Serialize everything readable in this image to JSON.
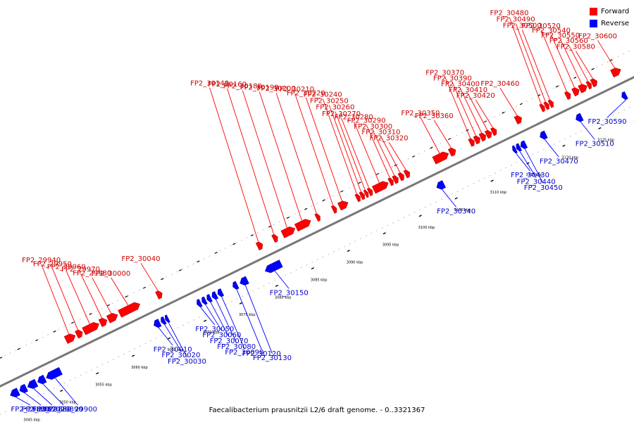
{
  "legend": {
    "forward_label": "Forward",
    "reverse_label": "Reverse",
    "forward_color": "#ff0000",
    "reverse_color": "#0000ff"
  },
  "caption": "Faecalibacterium prausnitzii L2/6 draft genome. - 0..3321367",
  "kbp_start": 3045,
  "kbp_end": 3130,
  "kbp_step": 5,
  "kbp_unit": "kbp",
  "genes": [
    {
      "name": "FP2_29860",
      "strand": "reverse",
      "start": 3044.0,
      "end": 3045.1
    },
    {
      "name": "FP2_29870",
      "strand": "reverse",
      "start": 3045.3,
      "end": 3046.2
    },
    {
      "name": "FP2_29880",
      "strand": "reverse",
      "start": 3046.4,
      "end": 3047.6
    },
    {
      "name": "FP2_29890",
      "strand": "reverse",
      "start": 3047.8,
      "end": 3048.8
    },
    {
      "name": "FP2_29900",
      "strand": "reverse",
      "start": 3049.0,
      "end": 3051.0
    },
    {
      "name": "FP2_29940",
      "strand": "forward",
      "start": 3053.3,
      "end": 3054.6
    },
    {
      "name": "FP2_29950",
      "strand": "forward",
      "start": 3054.8,
      "end": 3055.6
    },
    {
      "name": "FP2_29960",
      "strand": "forward",
      "start": 3055.8,
      "end": 3057.9
    },
    {
      "name": "FP2_29970",
      "strand": "forward",
      "start": 3058.1,
      "end": 3059.0
    },
    {
      "name": "FP2_29980",
      "strand": "forward",
      "start": 3059.2,
      "end": 3060.5
    },
    {
      "name": "FP2_30000",
      "strand": "forward",
      "start": 3060.8,
      "end": 3063.6
    },
    {
      "name": "FP2_30010",
      "strand": "reverse",
      "start": 3064.0,
      "end": 3064.8
    },
    {
      "name": "FP2_30020",
      "strand": "reverse",
      "start": 3065.0,
      "end": 3065.5
    },
    {
      "name": "FP2_30030",
      "strand": "reverse",
      "start": 3065.6,
      "end": 3066.0
    },
    {
      "name": "FP2_30040",
      "strand": "forward",
      "start": 3066.0,
      "end": 3066.7
    },
    {
      "name": "FP2_30050",
      "strand": "reverse",
      "start": 3070.0,
      "end": 3070.5
    },
    {
      "name": "FP2_30060",
      "strand": "reverse",
      "start": 3070.7,
      "end": 3071.2
    },
    {
      "name": "FP2_30070",
      "strand": "reverse",
      "start": 3071.4,
      "end": 3071.9
    },
    {
      "name": "FP2_30080",
      "strand": "reverse",
      "start": 3072.1,
      "end": 3072.7
    },
    {
      "name": "FP2_30090",
      "strand": "reverse",
      "start": 3072.9,
      "end": 3073.5
    },
    {
      "name": "FP2_30120",
      "strand": "reverse",
      "start": 3075.0,
      "end": 3075.6
    },
    {
      "name": "FP2_30130",
      "strand": "reverse",
      "start": 3076.0,
      "end": 3077.0
    },
    {
      "name": "FP2_30150",
      "strand": "reverse",
      "start": 3079.5,
      "end": 3081.7
    },
    {
      "name": "FP2_30140",
      "strand": "forward",
      "start": 3080.0,
      "end": 3080.7
    },
    {
      "name": "FP2_30160",
      "strand": "forward",
      "start": 3082.2,
      "end": 3082.8
    },
    {
      "name": "FP2_30180",
      "strand": "forward",
      "start": 3083.5,
      "end": 3085.2
    },
    {
      "name": "FP2_30190",
      "strand": "forward",
      "start": 3085.4,
      "end": 3087.4
    },
    {
      "name": "FP2_30200",
      "strand": "forward",
      "start": 3088.2,
      "end": 3088.7
    },
    {
      "name": "FP2_30210",
      "strand": "forward",
      "start": 3090.5,
      "end": 3091.0
    },
    {
      "name": "FP2_30220",
      "strand": "forward",
      "start": 3091.4,
      "end": 3092.6
    },
    {
      "name": "FP2_30240",
      "strand": "forward",
      "start": 3093.8,
      "end": 3094.3
    },
    {
      "name": "FP2_30250",
      "strand": "forward",
      "start": 3094.4,
      "end": 3094.9
    },
    {
      "name": "FP2_30260",
      "strand": "forward",
      "start": 3095.0,
      "end": 3095.4
    },
    {
      "name": "FP2_30270",
      "strand": "forward",
      "start": 3095.5,
      "end": 3096.0
    },
    {
      "name": "FP2_30280",
      "strand": "forward",
      "start": 3096.2,
      "end": 3098.2
    },
    {
      "name": "FP2_30290",
      "strand": "forward",
      "start": 3098.4,
      "end": 3098.9
    },
    {
      "name": "FP2_30300",
      "strand": "forward",
      "start": 3099.0,
      "end": 3099.6
    },
    {
      "name": "FP2_30310",
      "strand": "forward",
      "start": 3099.8,
      "end": 3100.4
    },
    {
      "name": "FP2_30320",
      "strand": "forward",
      "start": 3100.6,
      "end": 3101.2
    },
    {
      "name": "FP2_30340",
      "strand": "reverse",
      "start": 3103.4,
      "end": 3104.4
    },
    {
      "name": "FP2_30350",
      "strand": "forward",
      "start": 3104.6,
      "end": 3106.6
    },
    {
      "name": "FP2_30360",
      "strand": "forward",
      "start": 3106.8,
      "end": 3107.6
    },
    {
      "name": "FP2_30370",
      "strand": "forward",
      "start": 3109.6,
      "end": 3110.2
    },
    {
      "name": "FP2_30390",
      "strand": "forward",
      "start": 3110.3,
      "end": 3111.0
    },
    {
      "name": "FP2_30400",
      "strand": "forward",
      "start": 3111.1,
      "end": 3111.8
    },
    {
      "name": "FP2_30410",
      "strand": "forward",
      "start": 3111.9,
      "end": 3112.6
    },
    {
      "name": "FP2_30420",
      "strand": "forward",
      "start": 3112.7,
      "end": 3113.3
    },
    {
      "name": "FP2_30430",
      "strand": "reverse",
      "start": 3114.0,
      "end": 3114.4
    },
    {
      "name": "FP2_30440",
      "strand": "reverse",
      "start": 3114.5,
      "end": 3115.0
    },
    {
      "name": "FP2_30450",
      "strand": "reverse",
      "start": 3115.1,
      "end": 3115.8
    },
    {
      "name": "FP2_30460",
      "strand": "forward",
      "start": 3116.0,
      "end": 3116.8
    },
    {
      "name": "FP2_30470",
      "strand": "reverse",
      "start": 3117.8,
      "end": 3118.6
    },
    {
      "name": "FP2_30480",
      "strand": "forward",
      "start": 3119.5,
      "end": 3120.0
    },
    {
      "name": "FP2_30490",
      "strand": "forward",
      "start": 3120.1,
      "end": 3120.6
    },
    {
      "name": "FP2_30500",
      "strand": "forward",
      "start": 3120.7,
      "end": 3121.2
    },
    {
      "name": "FP2_30510",
      "strand": "reverse",
      "start": 3122.8,
      "end": 3123.6
    },
    {
      "name": "FP2_30520",
      "strand": "forward",
      "start": 3123.0,
      "end": 3123.6
    },
    {
      "name": "FP2_30540",
      "strand": "forward",
      "start": 3124.0,
      "end": 3124.8
    },
    {
      "name": "FP2_30550",
      "strand": "forward",
      "start": 3124.9,
      "end": 3125.9
    },
    {
      "name": "FP2_30560",
      "strand": "forward",
      "start": 3126.0,
      "end": 3126.5
    },
    {
      "name": "FP2_30580",
      "strand": "forward",
      "start": 3126.6,
      "end": 3127.3
    },
    {
      "name": "FP2_30590",
      "strand": "reverse",
      "start": 3129.2,
      "end": 3129.8
    },
    {
      "name": "FP2_30600",
      "strand": "forward",
      "start": 3129.4,
      "end": 3130.6
    }
  ]
}
